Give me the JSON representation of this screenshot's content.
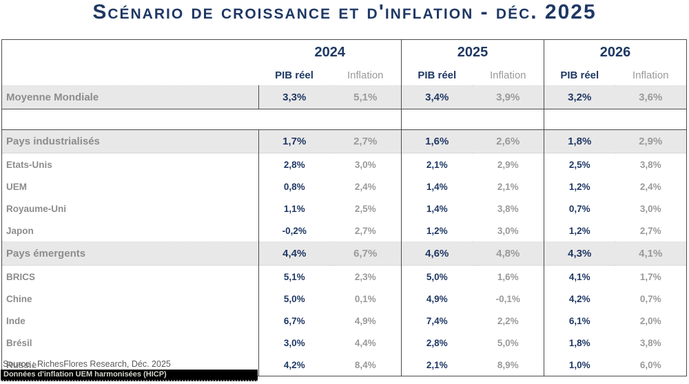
{
  "title": "Scénario de croissance et d'inflation - déc. 2025",
  "chart_data": {
    "type": "table",
    "title": "Scénario de croissance et d'inflation - déc. 2025",
    "column_groups": [
      "2024",
      "2025",
      "2026"
    ],
    "sub_columns": [
      "PIB réel",
      "Inflation"
    ],
    "rows": [
      {
        "label": "Moyenne Mondiale",
        "style": "band",
        "values": [
          "3,3%",
          "5,1%",
          "3,4%",
          "3,9%",
          "3,2%",
          "3,6%"
        ]
      },
      {
        "label": "",
        "style": "spacer",
        "values": [
          "",
          "",
          "",
          "",
          "",
          ""
        ]
      },
      {
        "label": "Pays industrialisés",
        "style": "band",
        "values": [
          "1,7%",
          "2,7%",
          "1,6%",
          "2,6%",
          "1,8%",
          "2,9%"
        ]
      },
      {
        "label": "Etats-Unis",
        "style": "row",
        "values": [
          "2,8%",
          "3,0%",
          "2,1%",
          "2,9%",
          "2,5%",
          "3,8%"
        ]
      },
      {
        "label": "UEM",
        "style": "row",
        "values": [
          "0,8%",
          "2,4%",
          "1,4%",
          "2,1%",
          "1,2%",
          "2,4%"
        ]
      },
      {
        "label": "Royaume-Uni",
        "style": "row",
        "values": [
          "1,1%",
          "2,5%",
          "1,4%",
          "3,8%",
          "0,7%",
          "3,0%"
        ]
      },
      {
        "label": "Japon",
        "style": "row",
        "values": [
          "-0,2%",
          "2,7%",
          "1,2%",
          "3,0%",
          "1,2%",
          "2,7%"
        ]
      },
      {
        "label": "Pays émergents",
        "style": "band",
        "values": [
          "4,4%",
          "6,7%",
          "4,6%",
          "4,8%",
          "4,3%",
          "4,1%"
        ]
      },
      {
        "label": "BRICS",
        "style": "row",
        "values": [
          "5,1%",
          "2,3%",
          "5,0%",
          "1,6%",
          "4,1%",
          "1,7%"
        ]
      },
      {
        "label": "Chine",
        "style": "row",
        "values": [
          "5,0%",
          "0,1%",
          "4,9%",
          "-0,1%",
          "4,2%",
          "0,7%"
        ]
      },
      {
        "label": "Inde",
        "style": "row",
        "values": [
          "6,7%",
          "4,9%",
          "7,4%",
          "2,2%",
          "6,1%",
          "2,0%"
        ]
      },
      {
        "label": "Brésil",
        "style": "row",
        "values": [
          "3,0%",
          "4,4%",
          "2,8%",
          "5,0%",
          "1,8%",
          "3,8%"
        ]
      },
      {
        "label": "Russie",
        "style": "row",
        "values": [
          "4,2%",
          "8,4%",
          "2,1%",
          "8,9%",
          "1,0%",
          "6,0%"
        ]
      }
    ]
  },
  "footer": {
    "source": "Source : RichesFlores Research,  Déc. 2025",
    "note": "Données d'inflation UEM harmonisées (HICP)"
  },
  "colors": {
    "accent_navy": "#1F3864",
    "label_gray": "#8C8C8C",
    "inflation_gray": "#9a9a9a",
    "band_background": "#E9E8E8",
    "note_bar_background": "#000000"
  }
}
